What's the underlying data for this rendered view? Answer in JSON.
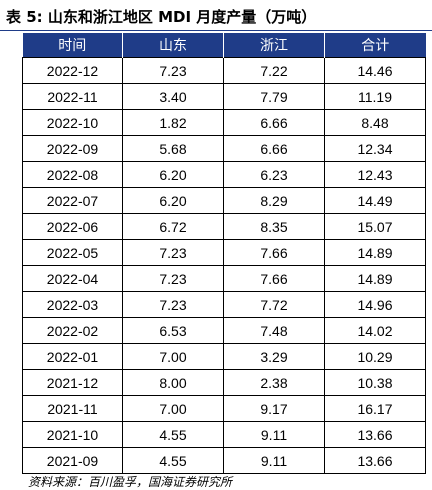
{
  "title": "表 5:  山东和浙江地区 MDI 月度产量（万吨）",
  "table": {
    "headers": [
      "时间",
      "山东",
      "浙江",
      "合计"
    ],
    "rows": [
      [
        "2022-12",
        "7.23",
        "7.22",
        "14.46"
      ],
      [
        "2022-11",
        "3.40",
        "7.79",
        "11.19"
      ],
      [
        "2022-10",
        "1.82",
        "6.66",
        "8.48"
      ],
      [
        "2022-09",
        "5.68",
        "6.66",
        "12.34"
      ],
      [
        "2022-08",
        "6.20",
        "6.23",
        "12.43"
      ],
      [
        "2022-07",
        "6.20",
        "8.29",
        "14.49"
      ],
      [
        "2022-06",
        "6.72",
        "8.35",
        "15.07"
      ],
      [
        "2022-05",
        "7.23",
        "7.66",
        "14.89"
      ],
      [
        "2022-04",
        "7.23",
        "7.66",
        "14.89"
      ],
      [
        "2022-03",
        "7.23",
        "7.72",
        "14.96"
      ],
      [
        "2022-02",
        "6.53",
        "7.48",
        "14.02"
      ],
      [
        "2022-01",
        "7.00",
        "3.29",
        "10.29"
      ],
      [
        "2021-12",
        "8.00",
        "2.38",
        "10.38"
      ],
      [
        "2021-11",
        "7.00",
        "9.17",
        "16.17"
      ],
      [
        "2021-10",
        "4.55",
        "9.11",
        "13.66"
      ],
      [
        "2021-09",
        "4.55",
        "9.11",
        "13.66"
      ]
    ]
  },
  "source": "资料来源：百川盈孚，国海证券研究所",
  "colors": {
    "header_bg": "#1f3c88",
    "header_text": "#ffffff"
  }
}
